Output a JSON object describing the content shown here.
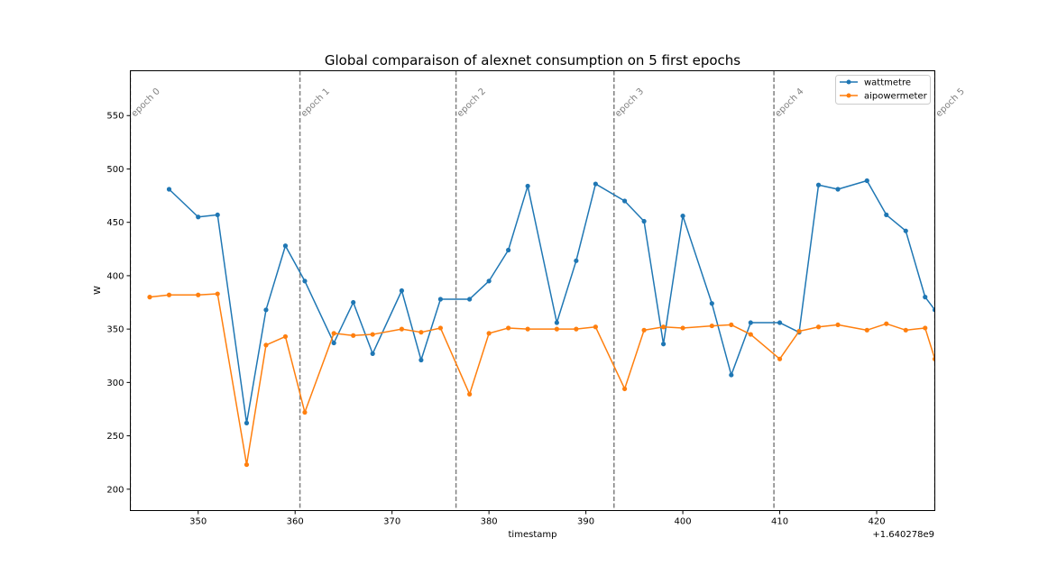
{
  "chart_data": {
    "type": "line",
    "title": "Global comparaison of alexnet consumption on 5 first epochs",
    "xlabel": "timestamp",
    "ylabel": "W",
    "x_offset_label": "+1.640278e9",
    "xlim": [
      343,
      426
    ],
    "ylim": [
      180,
      592
    ],
    "x_ticks": [
      350,
      360,
      370,
      380,
      390,
      400,
      410,
      420
    ],
    "y_ticks": [
      200,
      250,
      300,
      350,
      400,
      450,
      500,
      550
    ],
    "grid": false,
    "legend_position": "top-right",
    "epochs": [
      {
        "label": "epoch 0",
        "x": 343
      },
      {
        "label": "epoch 1",
        "x": 360.5
      },
      {
        "label": "epoch 2",
        "x": 376.6
      },
      {
        "label": "epoch 3",
        "x": 392.9
      },
      {
        "label": "epoch 4",
        "x": 409.4
      },
      {
        "label": "epoch 5",
        "x": 426
      }
    ],
    "series": [
      {
        "name": "wattmetre",
        "color": "#1f77b4",
        "x": [
          347,
          350,
          352,
          355,
          357,
          359,
          361,
          364,
          366,
          368,
          371,
          373,
          375,
          378,
          380,
          382,
          384,
          387,
          389,
          391,
          394,
          396,
          398,
          400,
          403,
          405,
          407,
          410,
          412,
          414,
          416,
          419,
          421,
          423,
          425,
          426
        ],
        "y": [
          481,
          455,
          457,
          262,
          368,
          428,
          395,
          337,
          375,
          327,
          386,
          321,
          378,
          378,
          395,
          424,
          484,
          356,
          414,
          486,
          470,
          451,
          336,
          456,
          374,
          307,
          356,
          356,
          347,
          485,
          481,
          489,
          457,
          442,
          380,
          368
        ]
      },
      {
        "name": "aipowermeter",
        "color": "#ff7f0e",
        "x": [
          345,
          347,
          350,
          352,
          355,
          357,
          359,
          361,
          364,
          366,
          368,
          371,
          373,
          375,
          378,
          380,
          382,
          384,
          387,
          389,
          391,
          394,
          396,
          398,
          400,
          403,
          405,
          407,
          410,
          412,
          414,
          416,
          419,
          421,
          423,
          425,
          426
        ],
        "y": [
          380,
          382,
          382,
          383,
          223,
          335,
          343,
          272,
          346,
          344,
          345,
          350,
          347,
          351,
          289,
          346,
          351,
          350,
          350,
          350,
          352,
          294,
          349,
          352,
          351,
          353,
          354,
          345,
          322,
          348,
          352,
          354,
          349,
          355,
          349,
          351,
          322
        ]
      }
    ]
  }
}
